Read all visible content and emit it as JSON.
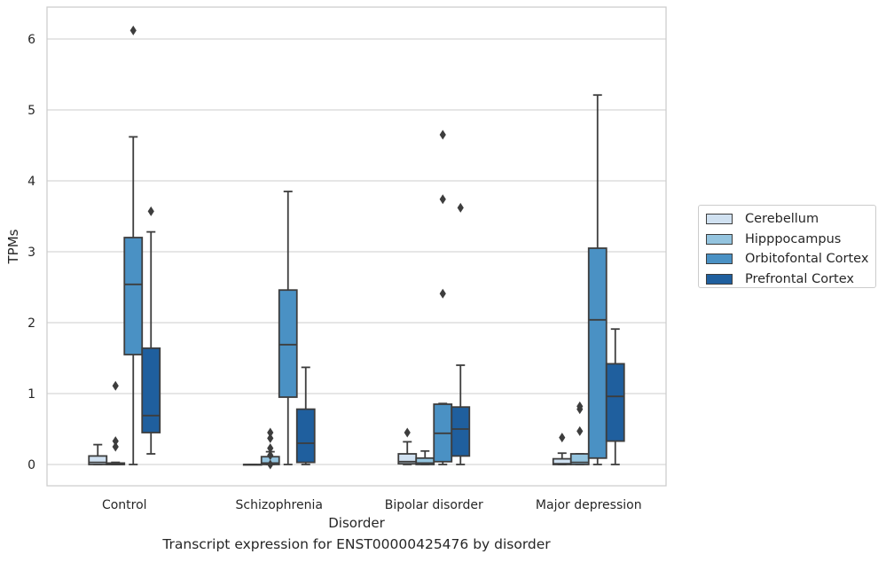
{
  "chart_data": {
    "type": "box",
    "title": "Transcript expression for ENST00000425476 by disorder",
    "xlabel": "Disorder",
    "ylabel": "TPMs",
    "ylim": [
      -0.3,
      6.45
    ],
    "yticks": [
      0,
      1,
      2,
      3,
      4,
      5,
      6
    ],
    "grid": "horizontal",
    "legend_position": "right",
    "categories": [
      "Control",
      "Schizophrenia",
      "Bipolar disorder",
      "Major depression"
    ],
    "series": [
      {
        "name": "Cerebellum",
        "color": "#d0e1f1",
        "boxes": [
          {
            "q1": 0.0,
            "median": 0.03,
            "q3": 0.12,
            "whisker_low": 0.0,
            "whisker_high": 0.28,
            "outliers": []
          },
          {
            "q1": 0.0,
            "median": 0.0,
            "q3": 0.0,
            "whisker_low": 0.0,
            "whisker_high": 0.0,
            "outliers": []
          },
          {
            "q1": 0.01,
            "median": 0.04,
            "q3": 0.15,
            "whisker_low": 0.0,
            "whisker_high": 0.32,
            "outliers": [
              0.45
            ]
          },
          {
            "q1": 0.0,
            "median": 0.01,
            "q3": 0.08,
            "whisker_low": 0.0,
            "whisker_high": 0.16,
            "outliers": [
              0.38
            ]
          }
        ]
      },
      {
        "name": "Hipppocampus",
        "color": "#94c4df",
        "boxes": [
          {
            "q1": 0.0,
            "median": 0.0,
            "q3": 0.02,
            "whisker_low": 0.0,
            "whisker_high": 0.03,
            "outliers": [
              0.25,
              0.33,
              1.11
            ]
          },
          {
            "q1": 0.0,
            "median": 0.02,
            "q3": 0.11,
            "whisker_low": 0.0,
            "whisker_high": 0.18,
            "outliers": [
              0.0,
              0.13,
              0.23,
              0.37,
              0.45
            ]
          },
          {
            "q1": 0.0,
            "median": 0.02,
            "q3": 0.09,
            "whisker_low": 0.0,
            "whisker_high": 0.19,
            "outliers": []
          },
          {
            "q1": 0.0,
            "median": 0.03,
            "q3": 0.15,
            "whisker_low": 0.0,
            "whisker_high": 0.15,
            "outliers": [
              0.47,
              0.78,
              0.82
            ]
          }
        ]
      },
      {
        "name": "Orbitofontal Cortex",
        "color": "#4a91c4",
        "boxes": [
          {
            "q1": 1.55,
            "median": 2.54,
            "q3": 3.2,
            "whisker_low": 0.0,
            "whisker_high": 4.62,
            "outliers": [
              6.12
            ]
          },
          {
            "q1": 0.95,
            "median": 1.69,
            "q3": 2.46,
            "whisker_low": 0.0,
            "whisker_high": 3.85,
            "outliers": []
          },
          {
            "q1": 0.04,
            "median": 0.44,
            "q3": 0.85,
            "whisker_low": 0.0,
            "whisker_high": 0.86,
            "outliers": [
              2.41,
              3.74,
              4.65
            ]
          },
          {
            "q1": 0.09,
            "median": 2.04,
            "q3": 3.05,
            "whisker_low": 0.0,
            "whisker_high": 5.21,
            "outliers": []
          }
        ]
      },
      {
        "name": "Prefrontal Cortex",
        "color": "#1f5f9e",
        "boxes": [
          {
            "q1": 0.45,
            "median": 0.69,
            "q3": 1.64,
            "whisker_low": 0.15,
            "whisker_high": 3.28,
            "outliers": [
              3.57
            ]
          },
          {
            "q1": 0.03,
            "median": 0.3,
            "q3": 0.78,
            "whisker_low": 0.0,
            "whisker_high": 1.37,
            "outliers": []
          },
          {
            "q1": 0.12,
            "median": 0.5,
            "q3": 0.81,
            "whisker_low": 0.0,
            "whisker_high": 1.4,
            "outliers": [
              3.62
            ]
          },
          {
            "q1": 0.33,
            "median": 0.96,
            "q3": 1.42,
            "whisker_low": 0.0,
            "whisker_high": 1.91,
            "outliers": []
          }
        ]
      }
    ]
  }
}
